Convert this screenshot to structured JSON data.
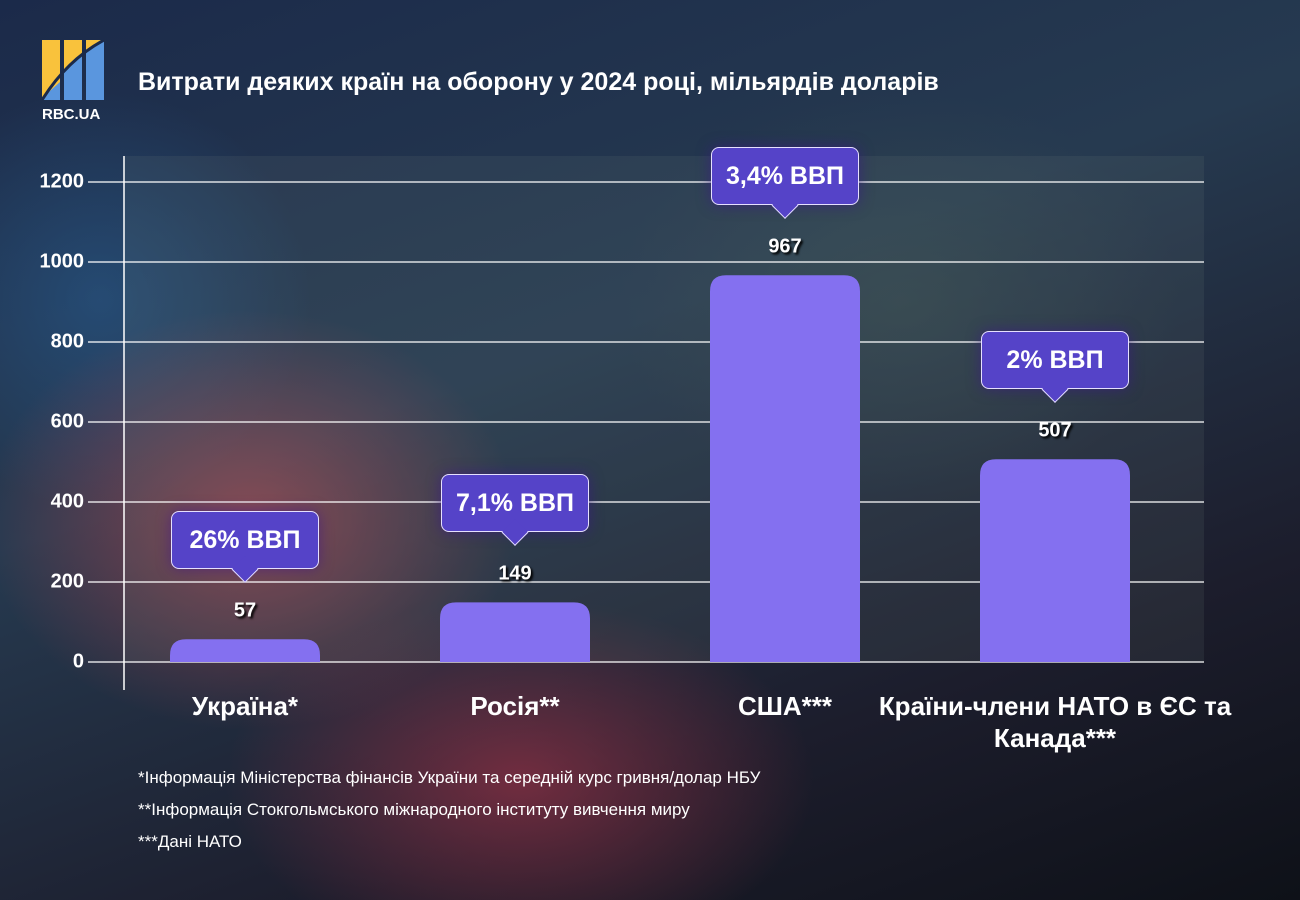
{
  "brand": {
    "name": "RBC.UA",
    "colors": {
      "yellow": "#f9c23c",
      "blue": "#5a96de"
    }
  },
  "chart_data": {
    "type": "bar",
    "title": "Витрати деяких країн на оборону у 2024 році, мільярдів доларів",
    "categories": [
      "Україна*",
      "Росія**",
      "США***",
      "Країни-члени НАТО в ЄС та Канада***"
    ],
    "values": [
      57,
      149,
      967,
      507
    ],
    "annotations": [
      "26% ВВП",
      "7,1% ВВП",
      "3,4% ВВП",
      "2% ВВП"
    ],
    "yticks": [
      0,
      200,
      400,
      600,
      800,
      1000,
      1200
    ],
    "ylim": [
      0,
      1200
    ],
    "grid": true,
    "xlabel": "",
    "ylabel": "",
    "bar_color": "#8470f0",
    "callout_color": "#5543c8"
  },
  "footnotes": [
    "*Інформація Міністерства фінансів України та середній курс гривня/долар НБУ",
    "**Інформація Стокгольмського міжнародного інституту вивчення миру",
    "***Дані НАТО"
  ]
}
